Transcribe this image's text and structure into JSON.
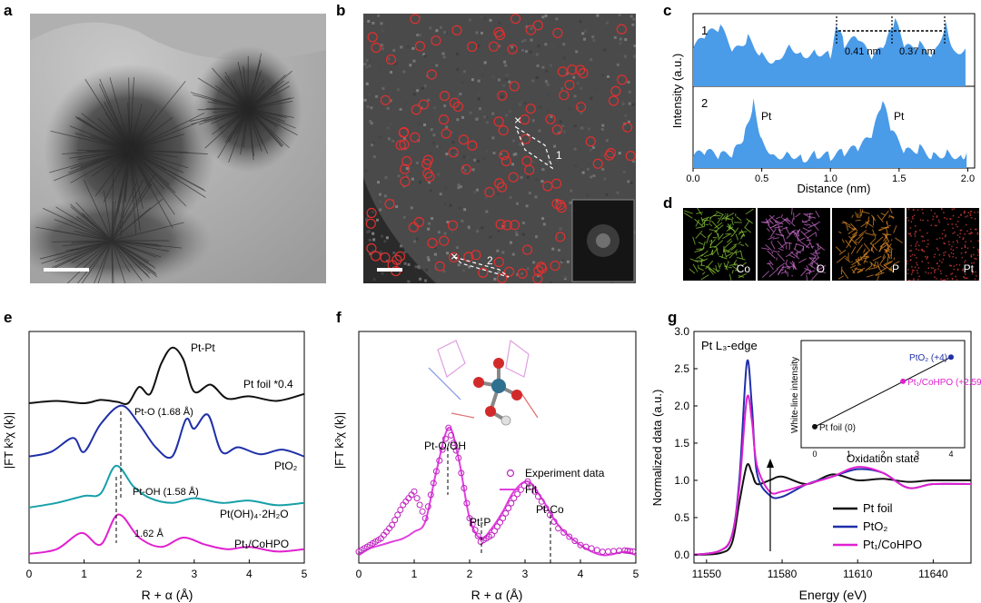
{
  "panels": {
    "a": {
      "letter": "a"
    },
    "b": {
      "letter": "b",
      "inset_label_1": "1",
      "inset_label_2": "2"
    },
    "c": {
      "letter": "c",
      "ylabel": "Intensity (a.u.)",
      "xlabel": "Distance (nm)",
      "profile1_label": "1",
      "profile2_label": "2",
      "annot_041": "0.41 nm",
      "annot_037": "0.37 nm",
      "pt_label_a": "Pt",
      "pt_label_b": "Pt",
      "xticks": [
        "0.0",
        "0.5",
        "1.0",
        "1.5",
        "2.0"
      ]
    },
    "d": {
      "letter": "d",
      "maps": [
        {
          "label": "Co",
          "color": "#8fd13a"
        },
        {
          "label": "O",
          "color": "#d56fd6"
        },
        {
          "label": "P",
          "color": "#e8902a"
        },
        {
          "label": "Pt",
          "color": "#d23a3a"
        }
      ]
    },
    "e": {
      "letter": "e"
    },
    "f": {
      "letter": "f",
      "structure_colors": {
        "pt": "#2f6f8f",
        "o": "#d22a2a",
        "h": "#e0e0e0"
      }
    },
    "g": {
      "letter": "g"
    }
  },
  "chart_data": [
    {
      "type": "line",
      "panel": "c",
      "xlabel": "Distance (nm)",
      "ylabel": "Intensity (a.u.)",
      "xlim": [
        0,
        2.05
      ],
      "series": [
        {
          "name": "1",
          "color": "#4a9be8",
          "x": [
            0,
            0.1,
            0.2,
            0.3,
            0.4,
            0.5,
            0.6,
            0.7,
            0.8,
            0.9,
            1.0,
            1.05,
            1.1,
            1.2,
            1.3,
            1.4,
            1.47,
            1.55,
            1.65,
            1.75,
            1.84,
            1.9,
            2.0
          ],
          "y": [
            0.55,
            0.75,
            0.85,
            0.5,
            0.7,
            0.45,
            0.35,
            0.6,
            0.45,
            0.5,
            0.45,
            0.9,
            0.6,
            0.7,
            0.4,
            0.6,
            0.95,
            0.55,
            0.6,
            0.45,
            0.9,
            0.5,
            0.55
          ]
        },
        {
          "name": "2",
          "color": "#4a9be8",
          "x": [
            0,
            0.1,
            0.2,
            0.3,
            0.38,
            0.44,
            0.5,
            0.6,
            0.7,
            0.8,
            0.9,
            1.0,
            1.1,
            1.2,
            1.3,
            1.38,
            1.45,
            1.55,
            1.65,
            1.75,
            1.85,
            1.95,
            2.0
          ],
          "y": [
            0.15,
            0.2,
            0.15,
            0.2,
            0.45,
            0.85,
            0.35,
            0.15,
            0.2,
            0.12,
            0.18,
            0.15,
            0.2,
            0.25,
            0.4,
            0.85,
            0.45,
            0.2,
            0.25,
            0.15,
            0.2,
            0.15,
            0.2
          ]
        }
      ]
    },
    {
      "type": "line",
      "panel": "e",
      "xlabel": "R + α (Å)",
      "ylabel": "|FT k³χ (k)|",
      "xlim": [
        0,
        5
      ],
      "xticks": [
        0,
        1,
        2,
        3,
        4,
        5
      ],
      "series": [
        {
          "name": "Pt foil *0.4",
          "color": "#111111",
          "x": [
            0,
            0.5,
            1.0,
            1.3,
            1.6,
            1.8,
            2.0,
            2.2,
            2.4,
            2.6,
            2.8,
            3.0,
            3.3,
            3.6,
            4.0,
            4.5,
            5.0
          ],
          "y": [
            3.35,
            3.4,
            3.35,
            3.42,
            3.38,
            3.35,
            3.7,
            3.55,
            4.2,
            4.55,
            4.3,
            3.6,
            3.75,
            3.45,
            3.5,
            3.4,
            3.55
          ]
        },
        {
          "name": "PtO₂",
          "color": "#1f2fa8",
          "x": [
            0,
            0.4,
            0.8,
            1.0,
            1.3,
            1.68,
            2.0,
            2.3,
            2.6,
            2.85,
            3.0,
            3.25,
            3.5,
            3.8,
            4.2,
            4.6,
            5.0
          ],
          "y": [
            2.2,
            2.3,
            2.6,
            2.3,
            2.9,
            3.3,
            2.9,
            2.4,
            2.2,
            3.0,
            2.8,
            3.1,
            2.3,
            2.4,
            2.25,
            2.35,
            2.2
          ]
        },
        {
          "name": "Pt(OH)₄·2H₂O",
          "color": "#17a0a8",
          "x": [
            0,
            0.5,
            1.0,
            1.3,
            1.58,
            1.9,
            2.2,
            2.6,
            3.0,
            3.5,
            4.0,
            4.5,
            5.0
          ],
          "y": [
            1.1,
            1.2,
            1.35,
            1.4,
            2.0,
            1.55,
            1.3,
            1.2,
            1.3,
            1.2,
            1.25,
            1.15,
            1.2
          ]
        },
        {
          "name": "Pt₁/CoHPO",
          "color": "#e020d0",
          "x": [
            0,
            0.5,
            0.95,
            1.3,
            1.62,
            2.0,
            2.4,
            2.8,
            3.2,
            3.6,
            4.0,
            4.5,
            5.0
          ],
          "y": [
            0.1,
            0.2,
            0.55,
            0.3,
            0.95,
            0.45,
            0.25,
            0.45,
            0.3,
            0.2,
            0.25,
            0.15,
            0.2
          ]
        }
      ],
      "annotations": [
        "Pt-Pt",
        "Pt foil *0.4",
        "Pt-O (1.68 Å)",
        "PtO₂",
        "Pt-OH (1.58 Å)",
        "Pt(OH)₄·2H₂O",
        "1.62 Å",
        "Pt₁/CoHPO"
      ]
    },
    {
      "type": "scatter",
      "panel": "f",
      "xlabel": "R + α (Å)",
      "ylabel": "|FT k³χ (k)|",
      "xlim": [
        0,
        5
      ],
      "xticks": [
        0,
        1,
        2,
        3,
        4,
        5
      ],
      "legend": [
        "Experiment data",
        "Fit"
      ],
      "series": [
        {
          "name": "Experiment data",
          "color": "#c020c0",
          "x": [
            0,
            0.2,
            0.4,
            0.6,
            0.8,
            1.0,
            1.2,
            1.4,
            1.62,
            1.8,
            2.0,
            2.2,
            2.4,
            2.6,
            2.8,
            3.05,
            3.3,
            3.6,
            4.0,
            4.4,
            4.8,
            5.0
          ],
          "y": [
            0.1,
            0.2,
            0.3,
            0.5,
            0.8,
            1.0,
            0.6,
            1.3,
            1.95,
            1.5,
            0.6,
            0.25,
            0.35,
            0.6,
            0.9,
            1.15,
            0.85,
            0.45,
            0.2,
            0.1,
            0.12,
            0.1
          ]
        },
        {
          "name": "Fit",
          "color": "#e040e0",
          "x": [
            0,
            0.2,
            0.4,
            0.6,
            0.8,
            1.0,
            1.2,
            1.4,
            1.62,
            1.8,
            2.0,
            2.2,
            2.4,
            2.6,
            2.8,
            3.05,
            3.3,
            3.6,
            4.0,
            4.4,
            4.8,
            5.0
          ],
          "y": [
            0.05,
            0.15,
            0.2,
            0.25,
            0.3,
            0.4,
            0.55,
            1.3,
            1.95,
            1.5,
            0.6,
            0.3,
            0.45,
            0.7,
            1.0,
            1.15,
            0.9,
            0.5,
            0.2,
            0.05,
            0.1,
            0.05
          ]
        }
      ],
      "annotations": [
        "Pt-O/OH",
        "Pt-P",
        "Pt-Co"
      ]
    },
    {
      "type": "line",
      "panel": "g",
      "xlabel": "Energy (eV)",
      "ylabel": "Normalized data (a.u.)",
      "xlim": [
        11545,
        11655
      ],
      "ylim": [
        -0.05,
        3.0
      ],
      "xticks": [
        11550,
        11580,
        11610,
        11640
      ],
      "yticks": [
        0.0,
        0.5,
        1.0,
        1.5,
        2.0,
        2.5,
        3.0
      ],
      "title": "Pt L₃-edge",
      "series": [
        {
          "name": "Pt foil",
          "color": "#111111",
          "x": [
            11545,
            11555,
            11560,
            11563,
            11566,
            11568,
            11570,
            11575,
            11580,
            11590,
            11600,
            11610,
            11620,
            11630,
            11640,
            11655
          ],
          "y": [
            0,
            0.02,
            0.15,
            0.7,
            1.2,
            1.1,
            0.95,
            1.0,
            1.05,
            0.95,
            1.08,
            1.0,
            1.02,
            0.98,
            1.0,
            1.0
          ]
        },
        {
          "name": "PtO₂",
          "color": "#1f2fa8",
          "x": [
            11545,
            11555,
            11560,
            11563,
            11566,
            11568,
            11570,
            11575,
            11580,
            11590,
            11600,
            11610,
            11620,
            11630,
            11640,
            11655
          ],
          "y": [
            0,
            0.05,
            0.25,
            1.0,
            2.58,
            2.0,
            1.1,
            0.8,
            0.78,
            0.95,
            1.05,
            1.15,
            1.1,
            0.9,
            0.95,
            0.95
          ]
        },
        {
          "name": "Pt₁/CoHPO",
          "color": "#e020d0",
          "x": [
            11545,
            11555,
            11560,
            11563,
            11566,
            11568,
            11570,
            11575,
            11580,
            11590,
            11600,
            11610,
            11620,
            11630,
            11640,
            11655
          ],
          "y": [
            0,
            0.05,
            0.25,
            0.9,
            2.1,
            1.8,
            1.2,
            0.85,
            0.85,
            0.95,
            1.05,
            1.18,
            1.1,
            0.9,
            0.95,
            0.95
          ]
        }
      ],
      "inset": {
        "type": "scatter",
        "xlabel": "Oxidation state",
        "ylabel": "White-line intensity",
        "xticks": [
          0,
          1,
          2,
          3,
          4
        ],
        "points": [
          {
            "label": "Pt foil (0)",
            "x": 0,
            "y": 1.2,
            "color": "#111111"
          },
          {
            "label": "Pt₁/CoHPO (+2.59)",
            "x": 2.59,
            "y": 2.1,
            "color": "#e020d0"
          },
          {
            "label": "PtO₂ (+4)",
            "x": 4,
            "y": 2.58,
            "color": "#1f2fa8"
          }
        ]
      }
    }
  ]
}
